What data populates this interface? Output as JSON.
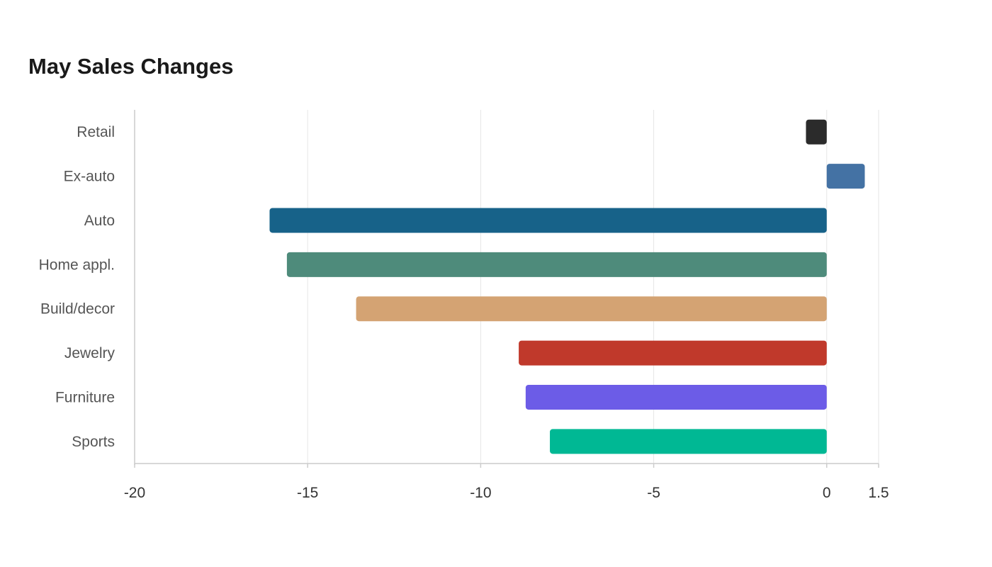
{
  "chart_data": {
    "type": "bar",
    "orientation": "horizontal",
    "title": "May Sales Changes",
    "xlabel": "",
    "ylabel": "",
    "categories": [
      "Retail",
      "Ex-auto",
      "Auto",
      "Home appl.",
      "Build/decor",
      "Jewelry",
      "Furniture",
      "Sports"
    ],
    "values": [
      -0.6,
      1.1,
      -16.1,
      -15.6,
      -13.6,
      -8.9,
      -8.7,
      -8.0
    ],
    "colors": [
      "#2b2b2b",
      "#4472a4",
      "#176289",
      "#4e8b7b",
      "#d4a373",
      "#c0392b",
      "#6c5ce7",
      "#00b894"
    ],
    "xlim": [
      -20,
      1.5
    ],
    "xticks": [
      "-20",
      "-15",
      "-10",
      "-5",
      "0",
      "1.5"
    ],
    "xtick_values": [
      -20,
      -15,
      -10,
      -5,
      0,
      1.5
    ],
    "grid": true,
    "legend": "none"
  }
}
